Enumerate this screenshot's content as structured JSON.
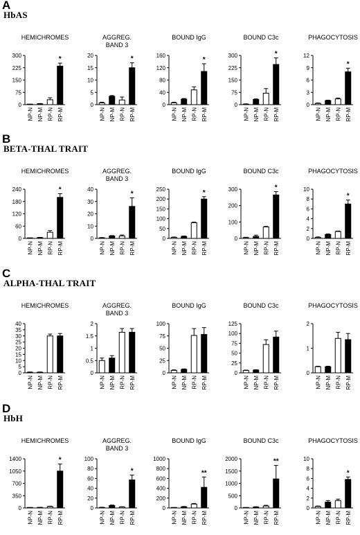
{
  "chart_data": [
    {
      "panel": "A",
      "panel_title": "HbAS",
      "charts": [
        {
          "type": "bar",
          "title": "HEMICHROMES",
          "categories": [
            "NP-N",
            "NP-M",
            "RP-N",
            "RP-M"
          ],
          "values": [
            1,
            5,
            30,
            235
          ],
          "errors": [
            1,
            2,
            12,
            18
          ],
          "ylim": [
            0,
            300
          ],
          "yticks": [
            "0",
            "75",
            "150",
            "225",
            "300"
          ],
          "annotations": [
            "",
            "",
            "",
            "*"
          ]
        },
        {
          "type": "bar",
          "title": "AGGREG. BAND 3",
          "categories": [
            "NP-N",
            "NP-M",
            "RP-N",
            "RP-M"
          ],
          "values": [
            0.7,
            3.4,
            1.9,
            15
          ],
          "errors": [
            0.3,
            0.3,
            1.2,
            2
          ],
          "ylim": [
            0,
            20
          ],
          "yticks": [
            "0",
            "5",
            "10",
            "15",
            "20"
          ],
          "annotations": [
            "",
            "",
            "",
            "*"
          ]
        },
        {
          "type": "bar",
          "title": "BOUND IgG",
          "categories": [
            "NP-N",
            "NP-M",
            "RP-N",
            "RP-M"
          ],
          "values": [
            6,
            18,
            48,
            108
          ],
          "errors": [
            2,
            2,
            10,
            25
          ],
          "ylim": [
            0,
            160
          ],
          "yticks": [
            "0",
            "40",
            "80",
            "120",
            "160"
          ],
          "annotations": [
            "",
            "",
            "",
            "*"
          ]
        },
        {
          "type": "bar",
          "title": "BOUND C3c",
          "categories": [
            "NP-N",
            "NP-M",
            "RP-N",
            "RP-M"
          ],
          "values": [
            3,
            32,
            70,
            245
          ],
          "errors": [
            2,
            3,
            28,
            40
          ],
          "ylim": [
            0,
            300
          ],
          "yticks": [
            "0",
            "75",
            "150",
            "225",
            "300"
          ],
          "annotations": [
            "",
            "",
            "",
            "*"
          ]
        },
        {
          "type": "bar",
          "title": "PHAGOCYTOSIS",
          "categories": [
            "NP-N",
            "NP-M",
            "RP-N",
            "RP-M"
          ],
          "values": [
            0.3,
            1.0,
            1.4,
            8.0
          ],
          "errors": [
            0.1,
            0.1,
            0.2,
            0.9
          ],
          "ylim": [
            0,
            12
          ],
          "yticks": [
            "0",
            "3",
            "6",
            "9",
            "12"
          ],
          "annotations": [
            "",
            "",
            "",
            "*"
          ]
        }
      ]
    },
    {
      "panel": "B",
      "panel_title": "BETA-THAL TRAIT",
      "charts": [
        {
          "type": "bar",
          "title": "HEMICHROMES",
          "categories": [
            "NP-N",
            "NP-M",
            "RP-N",
            "RP-M"
          ],
          "values": [
            1,
            4,
            30,
            200
          ],
          "errors": [
            1,
            1,
            8,
            18
          ],
          "ylim": [
            0,
            240
          ],
          "yticks": [
            "0",
            "60",
            "120",
            "180",
            "240"
          ],
          "annotations": [
            "",
            "",
            "",
            "*"
          ]
        },
        {
          "type": "bar",
          "title": "AGGREG. BAND 3",
          "categories": [
            "NP-N",
            "NP-M",
            "RP-N",
            "RP-M"
          ],
          "values": [
            0.5,
            2,
            2,
            26
          ],
          "errors": [
            0.2,
            0.3,
            0.8,
            7
          ],
          "ylim": [
            0,
            40
          ],
          "yticks": [
            "0",
            "10",
            "20",
            "30",
            "40"
          ],
          "annotations": [
            "",
            "",
            "",
            "*"
          ]
        },
        {
          "type": "bar",
          "title": "BOUND IgG",
          "categories": [
            "NP-N",
            "NP-M",
            "RP-N",
            "RP-M"
          ],
          "values": [
            5,
            10,
            80,
            200
          ],
          "errors": [
            2,
            2,
            3,
            12
          ],
          "ylim": [
            0,
            250
          ],
          "yticks": [
            "0",
            "50",
            "100",
            "150",
            "200",
            "250"
          ],
          "annotations": [
            "",
            "",
            "",
            "*"
          ]
        },
        {
          "type": "bar",
          "title": "BOUND C3c",
          "categories": [
            "NP-N",
            "NP-M",
            "RP-N",
            "RP-M"
          ],
          "values": [
            5,
            12,
            70,
            265
          ],
          "errors": [
            2,
            8,
            3,
            20
          ],
          "ylim": [
            0,
            300
          ],
          "yticks": [
            "0",
            "100",
            "200",
            "300"
          ],
          "annotations": [
            "",
            "",
            "",
            "*"
          ]
        },
        {
          "type": "bar",
          "title": "PHAGOCYTOSIS",
          "categories": [
            "NP-N",
            "NP-M",
            "RP-N",
            "RP-M"
          ],
          "values": [
            0.2,
            0.8,
            1.4,
            7.0
          ],
          "errors": [
            0.1,
            0.1,
            0.1,
            0.8
          ],
          "ylim": [
            0,
            10
          ],
          "yticks": [
            "0",
            "2",
            "4",
            "6",
            "8",
            "10"
          ],
          "annotations": [
            "",
            "",
            "",
            "*"
          ]
        }
      ]
    },
    {
      "panel": "C",
      "panel_title": "ALPHA-THAL TRAIT",
      "charts": [
        {
          "type": "bar",
          "title": "HEMICHROMES",
          "categories": [
            "NP-N",
            "NP-M",
            "RP-N",
            "RP-M"
          ],
          "values": [
            0.5,
            0.5,
            30,
            30
          ],
          "errors": [
            0.2,
            0.2,
            1.5,
            2
          ],
          "ylim": [
            0,
            40
          ],
          "yticks": [
            "0",
            "5",
            "10",
            "15",
            "20",
            "25",
            "30",
            "35",
            "40"
          ],
          "annotations": [
            "",
            "",
            "",
            ""
          ]
        },
        {
          "type": "bar",
          "title": "AGGREG. BAND 3",
          "categories": [
            "NP-N",
            "NP-M",
            "RP-N",
            "RP-M"
          ],
          "values": [
            0.5,
            0.6,
            1.65,
            1.65
          ],
          "errors": [
            0.1,
            0.1,
            0.15,
            0.15
          ],
          "ylim": [
            0,
            2
          ],
          "yticks": [
            "0",
            "0.5",
            "1",
            "1.5",
            "2"
          ],
          "annotations": [
            "",
            "",
            "",
            ""
          ]
        },
        {
          "type": "bar",
          "title": "BOUND IgG",
          "categories": [
            "NP-N",
            "NP-M",
            "RP-N",
            "RP-M"
          ],
          "values": [
            5,
            7,
            76,
            78
          ],
          "errors": [
            1,
            1,
            14,
            14
          ],
          "ylim": [
            0,
            100
          ],
          "yticks": [
            "0",
            "25",
            "50",
            "75",
            "100"
          ],
          "annotations": [
            "",
            "",
            "",
            ""
          ]
        },
        {
          "type": "bar",
          "title": "BOUND C3c",
          "categories": [
            "NP-N",
            "NP-M",
            "RP-N",
            "RP-M"
          ],
          "values": [
            6,
            7,
            72,
            91
          ],
          "errors": [
            1,
            1,
            12,
            15
          ],
          "ylim": [
            0,
            125
          ],
          "yticks": [
            "0",
            "25",
            "50",
            "75",
            "100",
            "125"
          ],
          "annotations": [
            "",
            "",
            "",
            ""
          ]
        },
        {
          "type": "bar",
          "title": "PHAGOCYTOSIS",
          "categories": [
            "NP-N",
            "NP-M",
            "RP-N",
            "RP-M"
          ],
          "values": [
            0.25,
            0.25,
            1.4,
            1.35
          ],
          "errors": [
            0.02,
            0.02,
            0.25,
            0.25
          ],
          "ylim": [
            0,
            2
          ],
          "yticks": [
            "0",
            "1",
            "2"
          ],
          "annotations": [
            "",
            "",
            "",
            ""
          ]
        }
      ]
    },
    {
      "panel": "D",
      "panel_title": "HbH",
      "charts": [
        {
          "type": "bar",
          "title": "HEMICHROMES",
          "categories": [
            "NP-N",
            "NP-M",
            "RP-N",
            "RP-M"
          ],
          "values": [
            5,
            15,
            40,
            1050
          ],
          "errors": [
            2,
            4,
            12,
            200
          ],
          "ylim": [
            0,
            1400
          ],
          "yticks": [
            "0",
            "350",
            "700",
            "1050",
            "1400"
          ],
          "annotations": [
            "",
            "",
            "",
            "*"
          ]
        },
        {
          "type": "bar",
          "title": "AGGREG. BAND 3",
          "categories": [
            "NP-N",
            "NP-M",
            "RP-N",
            "RP-M"
          ],
          "values": [
            1,
            5,
            2,
            57
          ],
          "errors": [
            0.5,
            1,
            0.5,
            10
          ],
          "ylim": [
            0,
            100
          ],
          "yticks": [
            "0",
            "20",
            "40",
            "60",
            "80",
            "100"
          ],
          "annotations": [
            "",
            "",
            "",
            "*"
          ]
        },
        {
          "type": "bar",
          "title": "BOUND IgG",
          "categories": [
            "NP-N",
            "NP-M",
            "RP-N",
            "RP-M"
          ],
          "values": [
            5,
            25,
            80,
            420
          ],
          "errors": [
            2,
            5,
            10,
            210
          ],
          "ylim": [
            0,
            1000
          ],
          "yticks": [
            "0",
            "200",
            "400",
            "600",
            "800",
            "1000"
          ],
          "annotations": [
            "",
            "",
            "",
            "**"
          ]
        },
        {
          "type": "bar",
          "title": "BOUND C3c",
          "categories": [
            "NP-N",
            "NP-M",
            "RP-N",
            "RP-M"
          ],
          "values": [
            5,
            40,
            80,
            1180
          ],
          "errors": [
            2,
            10,
            30,
            550
          ],
          "ylim": [
            0,
            2000
          ],
          "yticks": [
            "0",
            "500",
            "1000",
            "1500",
            "2000"
          ],
          "annotations": [
            "",
            "",
            "",
            "**"
          ]
        },
        {
          "type": "bar",
          "title": "PHAGOCYTOSIS",
          "categories": [
            "NP-N",
            "NP-M",
            "RP-N",
            "RP-M"
          ],
          "values": [
            0.3,
            1.2,
            1.5,
            5.8
          ],
          "errors": [
            0.1,
            0.3,
            0.3,
            0.5
          ],
          "ylim": [
            0,
            10
          ],
          "yticks": [
            "0",
            "2",
            "4",
            "6",
            "8",
            "10"
          ],
          "annotations": [
            "",
            "",
            "",
            "*"
          ]
        }
      ]
    }
  ],
  "colors": {
    "group_N": "#ffffff",
    "group_M": "#000000",
    "axis": "#000000"
  }
}
